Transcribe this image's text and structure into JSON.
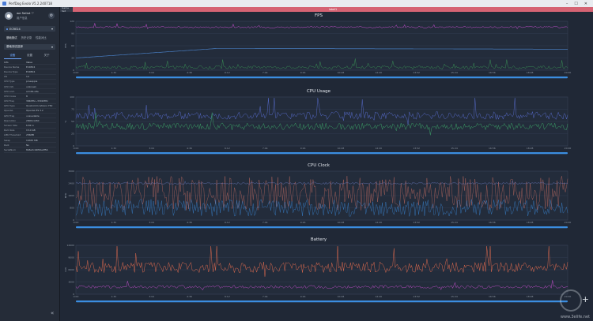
{
  "window": {
    "title": "PerfDog Evolo V5.2.240718"
  },
  "user": {
    "name": "we Sellot ♡",
    "sub": "用户信息"
  },
  "device": {
    "name": "ECRE24"
  },
  "side_tabs": [
    "基础测试",
    "历史记录",
    "性能对比"
  ],
  "section": {
    "label": "基础测试选择"
  },
  "info_tabs": [
    "设备",
    "设置",
    "关于"
  ],
  "info_table": [
    [
      "Info",
      "Value"
    ],
    [
      "Device Name",
      "ECRE24"
    ],
    [
      "Device Type",
      "ECRE24"
    ],
    [
      "OS",
      "14"
    ],
    [
      "CPU Type",
      "pineapple"
    ],
    [
      "CPU Info",
      "unknown"
    ],
    [
      "CPU Arch",
      "arm64-v8a"
    ],
    [
      "CPU Cores",
      "8"
    ],
    [
      "CPU Freq",
      "384MHz~3302MHz"
    ],
    [
      "GPU Type",
      "Qualcomm Adreno 750"
    ],
    [
      "OpenGL",
      "OpenGL ES 3.2"
    ],
    [
      "GPU Freq",
      "unavailable"
    ],
    [
      "Resolution",
      "2800x1260"
    ],
    [
      "Screen Size",
      "6.82 in"
    ],
    [
      "Ram Size",
      "15.0 GB"
    ],
    [
      "LMK Threshold",
      "256MB"
    ],
    [
      "Swap",
      "16383 MB"
    ],
    [
      "Root",
      "No"
    ],
    [
      "SerialNum",
      "8b8e3c44f00e0f56"
    ]
  ],
  "tabs": {
    "left": "Game Set",
    "active": "label1"
  },
  "time_ticks": [
    "0:00",
    "1:32",
    "3:04",
    "4:36",
    "6:12",
    "7:44",
    "9:16",
    "10:48",
    "12:20",
    "13:52",
    "15:24",
    "16:56",
    "18:28",
    "20:00"
  ],
  "panels": [
    {
      "title": "FPS",
      "ylabel": "FPS",
      "yticks": [
        "120",
        "90",
        "60",
        "30",
        "0"
      ],
      "colors": [
        "#d050d8",
        "#3da35a",
        "#4e8ad8"
      ]
    },
    {
      "title": "CPU Usage",
      "ylabel": "%",
      "yticks": [
        "100",
        "75",
        "50",
        "25",
        "0"
      ],
      "colors": [
        "#5a6fd6",
        "#3daa6a"
      ]
    },
    {
      "title": "CPU Clock",
      "ylabel": "MHz",
      "yticks": [
        "3200",
        "2400",
        "1600",
        "800",
        "0"
      ],
      "colors": [
        "#e87a6a",
        "#3b8de0",
        "#7a8ce0"
      ]
    },
    {
      "title": "Battery",
      "ylabel": "mW",
      "yticks": [
        "12000",
        "9000",
        "6000",
        "3000",
        "0"
      ],
      "colors": [
        "#f07050",
        "#d050d8"
      ]
    }
  ],
  "watermark": "www.3elife.net",
  "colors": {
    "accent": "#d56373",
    "scroll": "#3b8de0"
  }
}
